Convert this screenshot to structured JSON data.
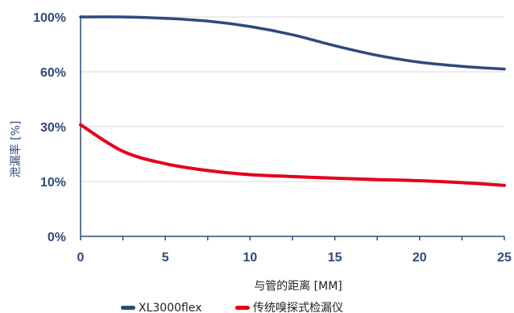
{
  "chart_data": {
    "type": "line",
    "xlabel": "与管的距离 [MM]",
    "ylabel": "泄漏率 [%]",
    "xlim": [
      0,
      25
    ],
    "x_ticks": [
      0,
      5,
      10,
      15,
      20,
      25
    ],
    "x_tick_labels": [
      "0",
      "5",
      "10",
      "15",
      "20",
      "25"
    ],
    "y_tick_labels": [
      "0%",
      "10%",
      "30%",
      "60%",
      "100%"
    ],
    "y_scale": "categorical-ticks (evenly spaced, non-linear)",
    "grid": "horizontal",
    "legend_position": "bottom",
    "series": [
      {
        "name": "XL3000flex",
        "color": "#2e4a7c",
        "x": [
          0,
          2.5,
          5,
          7.5,
          10,
          12.5,
          15,
          17.5,
          20,
          22.5,
          25
        ],
        "y": [
          100,
          100,
          99,
          97,
          93,
          87,
          79,
          72,
          67,
          64,
          62
        ]
      },
      {
        "name": "传统嗅探式检漏仪",
        "color": "#e3001b",
        "x": [
          0,
          2.5,
          5,
          7.5,
          10,
          12.5,
          15,
          17.5,
          20,
          22.5,
          25
        ],
        "y": [
          31,
          21,
          16.5,
          14,
          12.5,
          11.8,
          11.2,
          10.7,
          10.3,
          9.8,
          9.3
        ]
      }
    ]
  }
}
